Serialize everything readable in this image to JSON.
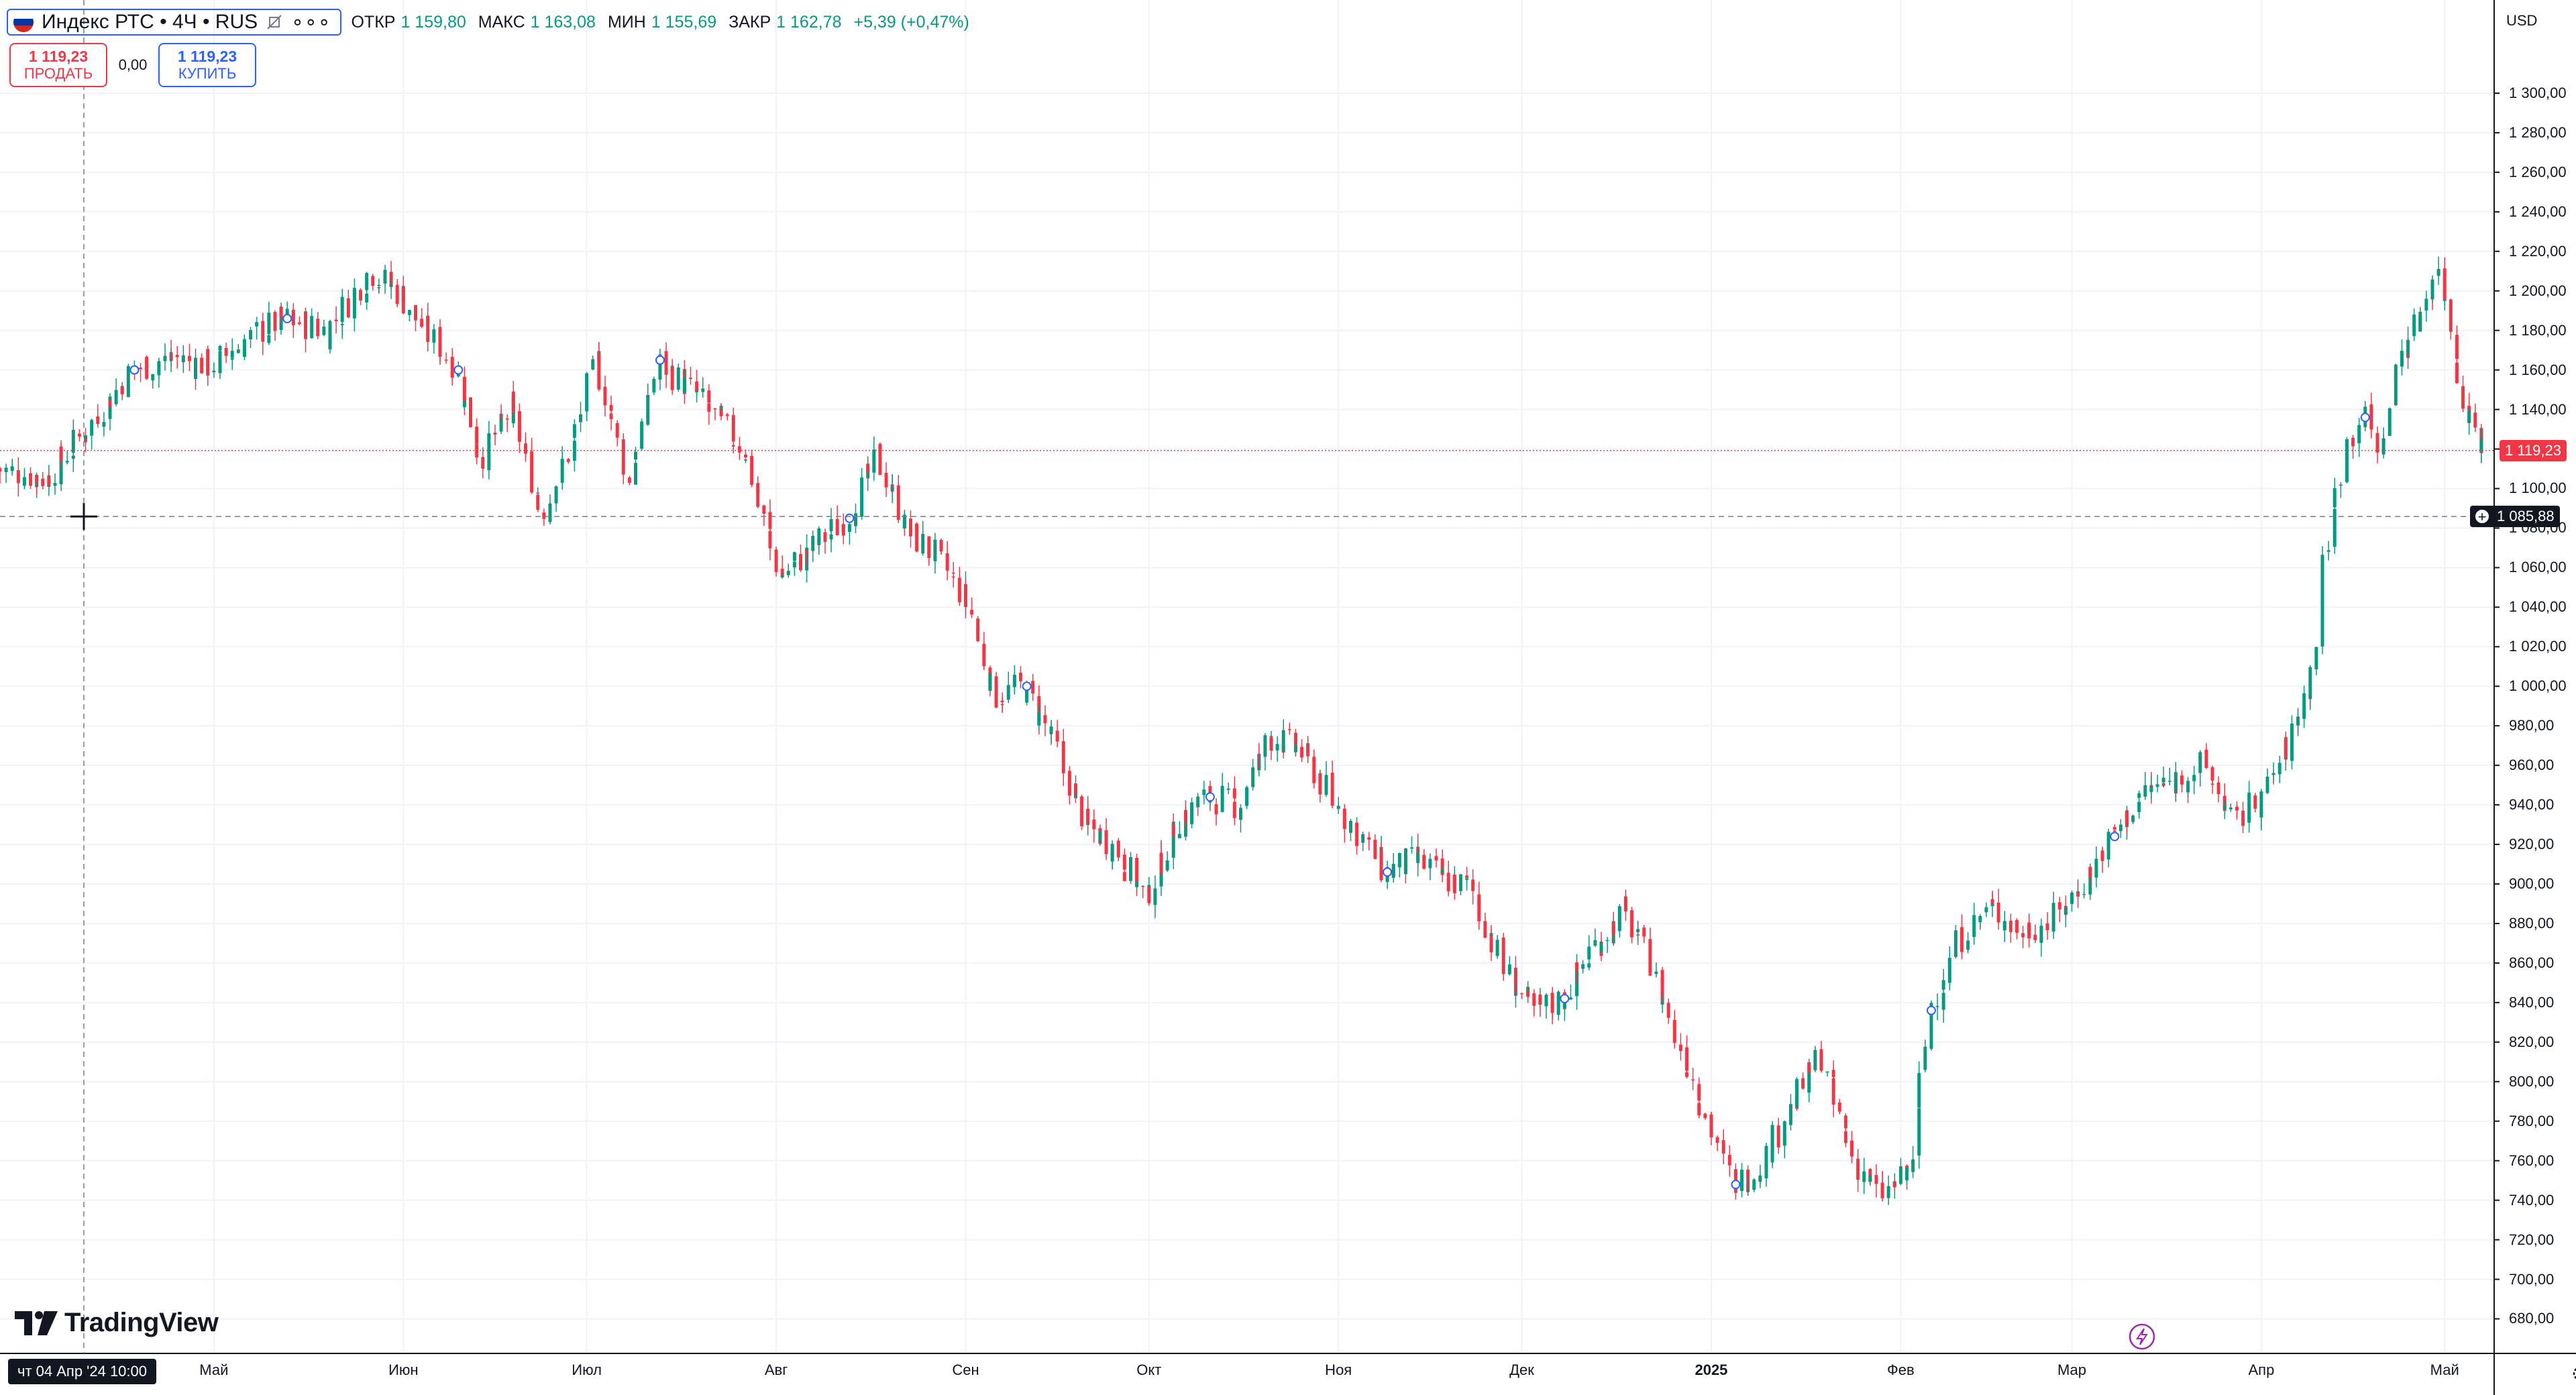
{
  "symbol": {
    "flag": "russia-flag-icon",
    "title": "Индекс РТС • 4Ч • RUS"
  },
  "ohlc": {
    "open_label": "ОТКР",
    "open": "1 159,80",
    "high_label": "МАКС",
    "high": "1 163,08",
    "low_label": "МИН",
    "low": "1 155,69",
    "close_label": "ЗАКР",
    "close": "1 162,78",
    "change": "+5,39 (+0,47%)"
  },
  "trade": {
    "sell_price": "1 119,23",
    "sell_label": "ПРОДАТЬ",
    "spread": "0,00",
    "buy_price": "1 119,23",
    "buy_label": "КУПИТЬ"
  },
  "price_scale": {
    "currency": "USD",
    "last_price": "1 119,23",
    "crosshair_price": "1 085,88"
  },
  "crosshair_time": "чт 04 Апр '24   10:00",
  "watermark": "TradingView",
  "colors": {
    "up": "#089981",
    "down": "#f23645",
    "accent": "#2962ff",
    "grid": "#f0f3fa"
  },
  "chart_data": {
    "type": "candlestick",
    "y_tick_labels": [
      "680,00",
      "700,00",
      "720,00",
      "740,00",
      "760,00",
      "780,00",
      "800,00",
      "820,00",
      "840,00",
      "860,00",
      "880,00",
      "900,00",
      "920,00",
      "940,00",
      "960,00",
      "980,00",
      "1 000,00",
      "1 020,00",
      "1 040,00",
      "1 060,00",
      "1 080,00",
      "1 100,00",
      "1 120,00",
      "1 140,00",
      "1 160,00",
      "1 180,00",
      "1 200,00",
      "1 220,00",
      "1 240,00",
      "1 260,00",
      "1 280,00",
      "1 300,00"
    ],
    "y_tick_values": [
      680,
      700,
      720,
      740,
      760,
      780,
      800,
      820,
      840,
      860,
      880,
      900,
      920,
      940,
      960,
      980,
      1000,
      1020,
      1040,
      1060,
      1080,
      1100,
      1120,
      1140,
      1160,
      1180,
      1200,
      1220,
      1240,
      1260,
      1280,
      1300
    ],
    "ylim": [
      671,
      1320
    ],
    "x_tick_labels": [
      "Май",
      "Июн",
      "Июл",
      "Авг",
      "Сен",
      "Окт",
      "Ноя",
      "Дек",
      "2025",
      "Фев",
      "Мар",
      "Апр",
      "Май"
    ],
    "x_tick_bold": [
      false,
      false,
      false,
      false,
      false,
      false,
      false,
      false,
      true,
      false,
      false,
      false,
      false
    ],
    "date_range": [
      "2024-03-27",
      "2025-05-08"
    ],
    "x_tick_dates": [
      "2024-05-01",
      "2024-06-01",
      "2024-07-01",
      "2024-08-01",
      "2024-09-01",
      "2024-10-01",
      "2024-11-01",
      "2024-12-01",
      "2025-01-01",
      "2025-02-01",
      "2025-03-01",
      "2025-04-01",
      "2025-05-01"
    ],
    "close_series": [
      [
        "2024-03-27",
        1110
      ],
      [
        "2024-04-04",
        1105
      ],
      [
        "2024-04-10",
        1128
      ],
      [
        "2024-04-18",
        1160
      ],
      [
        "2024-04-25",
        1166
      ],
      [
        "2024-05-01",
        1162
      ],
      [
        "2024-05-08",
        1178
      ],
      [
        "2024-05-13",
        1186
      ],
      [
        "2024-05-20",
        1180
      ],
      [
        "2024-05-27",
        1210
      ],
      [
        "2024-06-01",
        1198
      ],
      [
        "2024-06-05",
        1180
      ],
      [
        "2024-06-10",
        1160
      ],
      [
        "2024-06-14",
        1116
      ],
      [
        "2024-06-19",
        1140
      ],
      [
        "2024-06-24",
        1088
      ],
      [
        "2024-06-29",
        1122
      ],
      [
        "2024-07-03",
        1165
      ],
      [
        "2024-07-08",
        1102
      ],
      [
        "2024-07-13",
        1165
      ],
      [
        "2024-07-20",
        1145
      ],
      [
        "2024-07-27",
        1120
      ],
      [
        "2024-08-02",
        1055
      ],
      [
        "2024-08-08",
        1072
      ],
      [
        "2024-08-13",
        1085
      ],
      [
        "2024-08-18",
        1116
      ],
      [
        "2024-08-23",
        1078
      ],
      [
        "2024-08-28",
        1065
      ],
      [
        "2024-09-02",
        1040
      ],
      [
        "2024-09-06",
        995
      ],
      [
        "2024-09-11",
        1000
      ],
      [
        "2024-09-16",
        970
      ],
      [
        "2024-09-21",
        930
      ],
      [
        "2024-09-26",
        918
      ],
      [
        "2024-10-01",
        892
      ],
      [
        "2024-10-06",
        932
      ],
      [
        "2024-10-11",
        944
      ],
      [
        "2024-10-16",
        940
      ],
      [
        "2024-10-21",
        975
      ],
      [
        "2024-10-26",
        968
      ],
      [
        "2024-11-01",
        940
      ],
      [
        "2024-11-05",
        925
      ],
      [
        "2024-11-09",
        906
      ],
      [
        "2024-11-14",
        912
      ],
      [
        "2024-11-19",
        902
      ],
      [
        "2024-11-23",
        898
      ],
      [
        "2024-11-28",
        860
      ],
      [
        "2024-12-03",
        835
      ],
      [
        "2024-12-08",
        842
      ],
      [
        "2024-12-13",
        868
      ],
      [
        "2024-12-18",
        886
      ],
      [
        "2024-12-22",
        862
      ],
      [
        "2024-12-27",
        820
      ],
      [
        "2025-01-01",
        780
      ],
      [
        "2025-01-05",
        748
      ],
      [
        "2025-01-09",
        756
      ],
      [
        "2025-01-14",
        784
      ],
      [
        "2025-01-19",
        814
      ],
      [
        "2025-01-24",
        765
      ],
      [
        "2025-01-29",
        742
      ],
      [
        "2025-02-03",
        754
      ],
      [
        "2025-02-06",
        836
      ],
      [
        "2025-02-11",
        872
      ],
      [
        "2025-02-16",
        888
      ],
      [
        "2025-02-21",
        876
      ],
      [
        "2025-02-26",
        880
      ],
      [
        "2025-03-03",
        900
      ],
      [
        "2025-03-08",
        924
      ],
      [
        "2025-03-13",
        946
      ],
      [
        "2025-03-18",
        952
      ],
      [
        "2025-03-23",
        960
      ],
      [
        "2025-03-28",
        930
      ],
      [
        "2025-04-02",
        946
      ],
      [
        "2025-04-06",
        972
      ],
      [
        "2025-04-10",
        1010
      ],
      [
        "2025-04-12",
        1070
      ],
      [
        "2025-04-15",
        1120
      ],
      [
        "2025-04-18",
        1136
      ],
      [
        "2025-04-21",
        1120
      ],
      [
        "2025-04-24",
        1168
      ],
      [
        "2025-04-27",
        1185
      ],
      [
        "2025-04-30",
        1212
      ],
      [
        "2025-05-02",
        1188
      ],
      [
        "2025-05-04",
        1150
      ],
      [
        "2025-05-06",
        1132
      ],
      [
        "2025-05-08",
        1119
      ]
    ],
    "last_price": 1119.23,
    "crosshair_price": 1085.88,
    "grid": true
  }
}
